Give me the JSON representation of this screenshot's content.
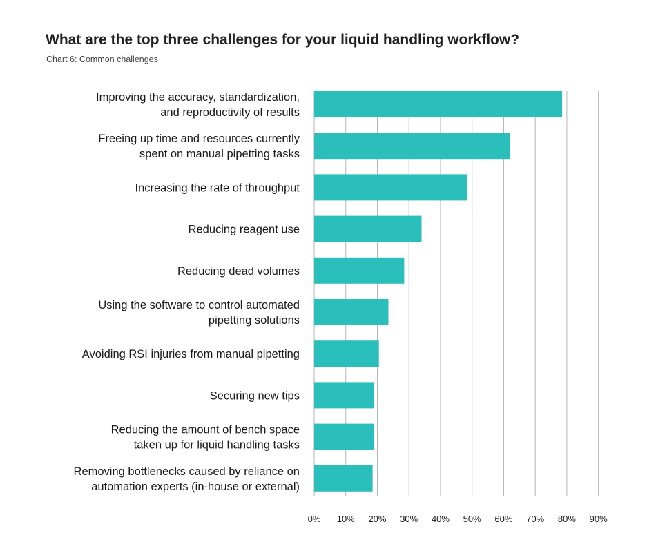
{
  "chart_data": {
    "type": "bar",
    "orientation": "horizontal",
    "title": "What are the top three challenges for your liquid handling workflow?",
    "subtitle": "Chart 6: Common challenges",
    "categories": [
      [
        "Improving the accuracy, standardization,",
        "and reproductivity of results"
      ],
      [
        "Freeing up time and resources currently",
        "spent on manual pipetting tasks"
      ],
      [
        "Increasing the rate of throughput"
      ],
      [
        "Reducing reagent use"
      ],
      [
        "Reducing dead volumes"
      ],
      [
        "Using the software to control automated",
        "pipetting solutions"
      ],
      [
        "Avoiding RSI injuries from manual pipetting"
      ],
      [
        "Securing new tips"
      ],
      [
        "Reducing the amount of bench space",
        "taken up for liquid handling tasks"
      ],
      [
        "Removing bottlenecks caused by reliance on",
        "automation experts (in-house or external)"
      ]
    ],
    "values": [
      78.5,
      62,
      48.5,
      34,
      28.5,
      23.5,
      20.5,
      19,
      18.8,
      18.5
    ],
    "xlim": [
      0,
      90
    ],
    "xticks": [
      "0%",
      "10%",
      "20%",
      "30%",
      "40%",
      "50%",
      "60%",
      "70%",
      "80%",
      "90%"
    ],
    "grid": true,
    "bar_color": "#2bbfbc",
    "grid_color": "#b4b4b4"
  }
}
